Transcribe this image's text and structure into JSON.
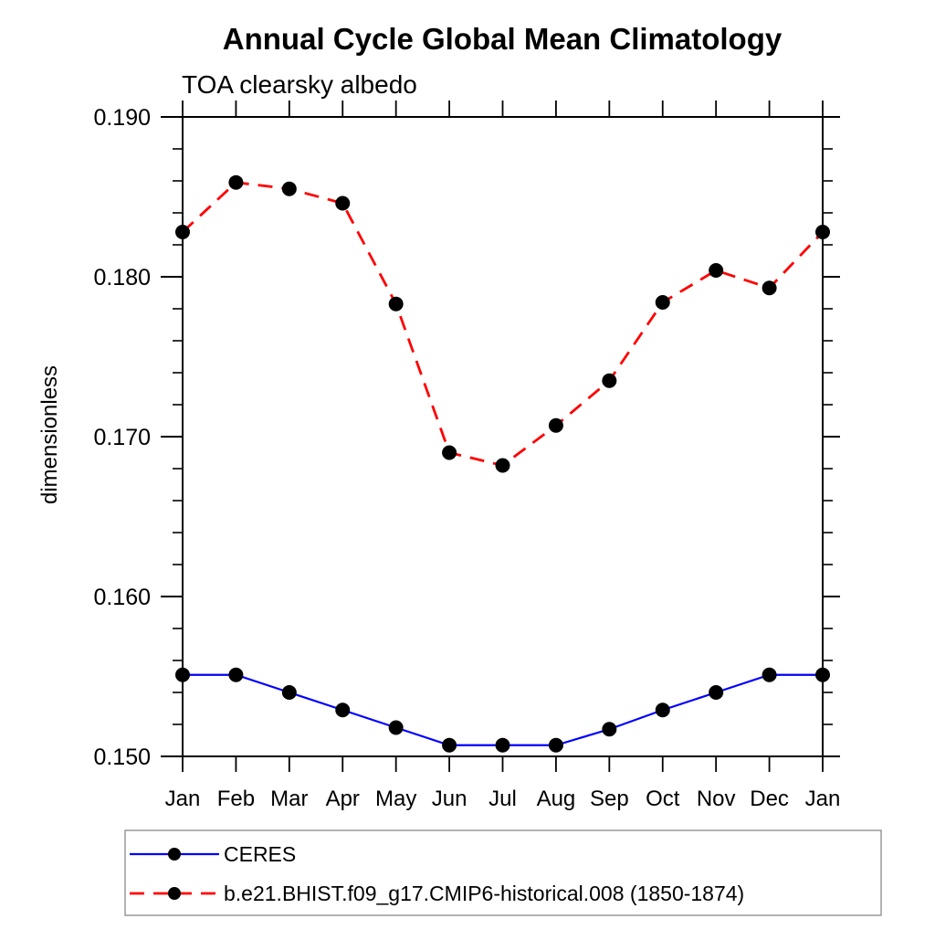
{
  "chart_data": {
    "type": "line",
    "title": "Annual Cycle Global Mean Climatology",
    "subtitle": "TOA clearsky albedo",
    "ylabel": "dimensionless",
    "xlabel": "",
    "categories": [
      "Jan",
      "Feb",
      "Mar",
      "Apr",
      "May",
      "Jun",
      "Jul",
      "Aug",
      "Sep",
      "Oct",
      "Nov",
      "Dec",
      "Jan"
    ],
    "ylim": [
      0.15,
      0.19
    ],
    "yticks_major": [
      0.15,
      0.16,
      0.17,
      0.18,
      0.19
    ],
    "ytick_labels": [
      "0.150",
      "0.160",
      "0.170",
      "0.180",
      "0.190"
    ],
    "ytick_minor_step": 0.002,
    "grid": false,
    "axis_color": "#000000",
    "marker_color": "#000000",
    "legend_position": "bottom-left",
    "legend_border_color": "#999999",
    "series": [
      {
        "name": "CERES",
        "color": "#0000ff",
        "style": "solid",
        "marker": "circle",
        "values": [
          0.1551,
          0.1551,
          0.154,
          0.1529,
          0.1518,
          0.1507,
          0.1507,
          0.1507,
          0.1517,
          0.1529,
          0.154,
          0.1551,
          0.1551
        ]
      },
      {
        "name": "b.e21.BHIST.f09_g17.CMIP6-historical.008 (1850-1874)",
        "color": "#ff0000",
        "style": "dashed",
        "marker": "circle",
        "values": [
          0.1828,
          0.1859,
          0.1855,
          0.1846,
          0.1783,
          0.169,
          0.1682,
          0.1707,
          0.1735,
          0.1784,
          0.1804,
          0.1793,
          0.1828
        ]
      }
    ]
  }
}
